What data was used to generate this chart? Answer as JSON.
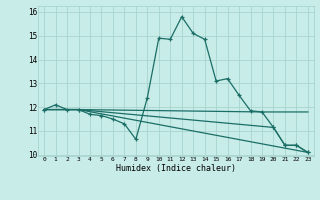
{
  "background_color": "#c8ece8",
  "grid_color": "#a8d4d0",
  "line_color": "#1a6e66",
  "xlim": [
    -0.5,
    23.5
  ],
  "ylim": [
    9.95,
    16.25
  ],
  "yticks": [
    10,
    11,
    12,
    13,
    14,
    15,
    16
  ],
  "xticks": [
    0,
    1,
    2,
    3,
    4,
    5,
    6,
    7,
    8,
    9,
    10,
    11,
    12,
    13,
    14,
    15,
    16,
    17,
    18,
    19,
    20,
    21,
    22,
    23
  ],
  "xlabel": "Humidex (Indice chaleur)",
  "curve1_x": [
    0,
    1,
    2,
    3,
    4,
    5,
    6,
    7,
    8,
    9,
    10,
    11,
    12,
    13,
    14,
    15,
    16,
    17,
    18,
    19,
    20,
    21,
    22,
    23
  ],
  "curve1_y": [
    11.9,
    12.1,
    11.9,
    11.9,
    11.7,
    11.65,
    11.5,
    11.3,
    10.65,
    12.4,
    14.9,
    14.85,
    15.8,
    15.1,
    14.85,
    13.1,
    13.2,
    12.5,
    11.85,
    11.8,
    11.15,
    10.4,
    10.4,
    10.1
  ],
  "curve2_x": [
    0,
    3,
    19,
    23
  ],
  "curve2_y": [
    11.9,
    11.9,
    11.8,
    11.8
  ],
  "curve3_x": [
    0,
    3,
    20,
    21,
    22,
    23
  ],
  "curve3_y": [
    11.9,
    11.9,
    11.15,
    10.4,
    10.4,
    10.1
  ],
  "curve4_x": [
    0,
    3,
    23
  ],
  "curve4_y": [
    11.9,
    11.9,
    10.1
  ]
}
